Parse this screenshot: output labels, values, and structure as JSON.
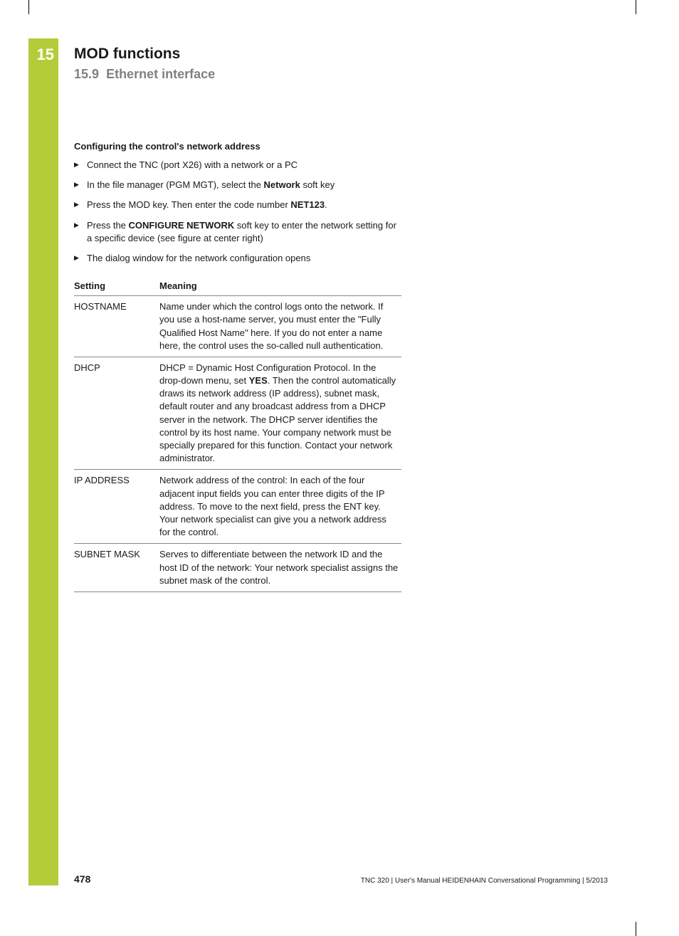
{
  "chapter": {
    "number": "15",
    "title": "MOD functions",
    "section_number": "15.9",
    "section_title": "Ethernet interface"
  },
  "subheading": "Configuring the control's network address",
  "bullets": [
    {
      "pre": "Connect the TNC (port X26) with a network or a PC",
      "bold": "",
      "post": ""
    },
    {
      "pre": "In the file manager (PGM MGT), select the ",
      "bold": "Network",
      "post": " soft key"
    },
    {
      "pre": "Press the MOD key. Then enter the code number ",
      "bold": "NET123",
      "post": "."
    },
    {
      "pre": "Press the ",
      "bold": "CONFIGURE NETWORK",
      "post": " soft key to enter the network setting for a specific device (see figure at center right)"
    },
    {
      "pre": "The dialog window for the network configuration opens",
      "bold": "",
      "post": ""
    }
  ],
  "table": {
    "header_setting": "Setting",
    "header_meaning": "Meaning",
    "rows": [
      {
        "setting": "HOSTNAME",
        "meaning_pre": "Name under which the control logs onto the network. If you use a host-name server, you must enter the \"Fully Qualified Host Name\" here. If you do not enter a name here, the control uses the so-called null authentication.",
        "meaning_bold": "",
        "meaning_post": ""
      },
      {
        "setting": "DHCP",
        "meaning_pre": "DHCP = Dynamic Host Configuration Protocol. In the drop-down menu, set ",
        "meaning_bold": "YES",
        "meaning_post": ". Then the control automatically draws its network address (IP address), subnet mask, default router and any broadcast address from a DHCP server in the network. The DHCP server identifies the control by its host name. Your company network must be specially prepared for this function. Contact your network administrator."
      },
      {
        "setting": "IP ADDRESS",
        "meaning_pre": "Network address of the control: In each of the four adjacent input fields you can enter three digits of the IP address. To move to the next field, press the ENT key. Your network specialist can give you a network address for the control.",
        "meaning_bold": "",
        "meaning_post": ""
      },
      {
        "setting": "SUBNET MASK",
        "meaning_pre": "Serves to differentiate between the network ID and the host ID of the network: Your network specialist assigns the subnet mask of the control.",
        "meaning_bold": "",
        "meaning_post": ""
      }
    ]
  },
  "footer": {
    "page_number": "478",
    "text": "TNC 320 | User's Manual HEIDENHAIN Conversational Programming | 5/2013"
  },
  "colors": {
    "green": "#b5cc39",
    "text": "#1a1a1a",
    "gray": "#808080"
  }
}
